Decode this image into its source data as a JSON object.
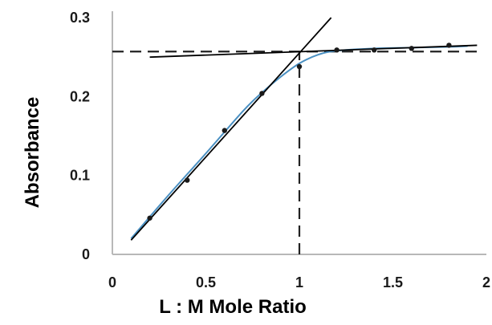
{
  "chart_data": {
    "type": "scatter",
    "title": "",
    "xlabel": "L : M Mole Ratio",
    "ylabel": "Absorbance",
    "xlim": [
      0,
      2
    ],
    "ylim": [
      0,
      0.3
    ],
    "grid": false,
    "x_ticks": [
      "0",
      "0.5",
      "1",
      "1.5",
      "2"
    ],
    "y_ticks": [
      "0",
      "0.1",
      "0.2",
      "0.3"
    ],
    "series": [
      {
        "kind": "points",
        "x": [
          0.2,
          0.4,
          0.6,
          0.8,
          1.0,
          1.2,
          1.4,
          1.6,
          1.8
        ],
        "y": [
          0.046,
          0.094,
          0.157,
          0.204,
          0.238,
          0.259,
          0.259,
          0.261,
          0.265
        ]
      },
      {
        "kind": "fitted-curve",
        "x": [
          0.1,
          0.3,
          0.5,
          0.7,
          0.8,
          0.9,
          1.0,
          1.1,
          1.2,
          1.4,
          1.6,
          1.8,
          1.9
        ],
        "y": [
          0.02,
          0.075,
          0.128,
          0.182,
          0.205,
          0.225,
          0.242,
          0.253,
          0.258,
          0.261,
          0.262,
          0.263,
          0.264
        ],
        "color": "#4a90c2"
      },
      {
        "kind": "tangent-line",
        "x": [
          0.1,
          1.17
        ],
        "y": [
          0.018,
          0.3
        ],
        "color": "#000000"
      },
      {
        "kind": "tangent-line",
        "x": [
          0.2,
          1.95
        ],
        "y": [
          0.25,
          0.265
        ],
        "color": "#000000"
      }
    ],
    "annotations": [
      {
        "kind": "dashed-horizontal",
        "y": 0.257,
        "x_from": 0.0,
        "x_to": 1.95
      },
      {
        "kind": "dashed-vertical",
        "x": 1.0,
        "y_from": 0.0,
        "y_to": 0.257
      }
    ]
  }
}
